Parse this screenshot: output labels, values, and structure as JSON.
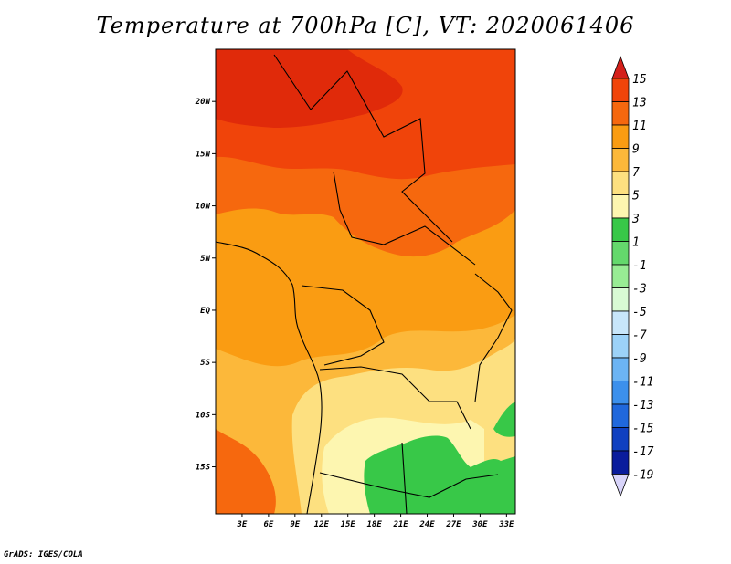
{
  "title": "Temperature at 700hPa [C], VT: 2020061406",
  "credit": "GrADS: IGES/COLA",
  "map": {
    "lat_range": [
      -19.5,
      25
    ],
    "lon_range": [
      0,
      34
    ],
    "lat_ticks": [
      {
        "value": 20,
        "label": "20N"
      },
      {
        "value": 15,
        "label": "15N"
      },
      {
        "value": 10,
        "label": "10N"
      },
      {
        "value": 5,
        "label": "5N"
      },
      {
        "value": 0,
        "label": "EQ"
      },
      {
        "value": -5,
        "label": "5S"
      },
      {
        "value": -10,
        "label": "10S"
      },
      {
        "value": -15,
        "label": "15S"
      }
    ],
    "lon_ticks": [
      {
        "value": 3,
        "label": "3E"
      },
      {
        "value": 6,
        "label": "6E"
      },
      {
        "value": 9,
        "label": "9E"
      },
      {
        "value": 12,
        "label": "12E"
      },
      {
        "value": 15,
        "label": "15E"
      },
      {
        "value": 18,
        "label": "18E"
      },
      {
        "value": 21,
        "label": "21E"
      },
      {
        "value": 24,
        "label": "24E"
      },
      {
        "value": 27,
        "label": "27E"
      },
      {
        "value": 30,
        "label": "30E"
      },
      {
        "value": 33,
        "label": "33E"
      }
    ]
  },
  "colorbar": {
    "levels": [
      "15",
      "13",
      "11",
      "9",
      "7",
      "5",
      "3",
      "1",
      "-1",
      "-3",
      "-5",
      "-7",
      "-9",
      "-11",
      "-13",
      "-15",
      "-17",
      "-19"
    ],
    "colors": [
      "#e02a0a",
      "#f0440a",
      "#f6680e",
      "#fa9c12",
      "#fcb83a",
      "#fde080",
      "#fdf6b0",
      "#38c848",
      "#64d86c",
      "#98ec94",
      "#d8fad4",
      "#c8e6fa",
      "#9cd2f8",
      "#6cb4f4",
      "#3c90ec",
      "#2068dc",
      "#1040c0",
      "#0a1c9c",
      "#060c70"
    ],
    "top_arrow_color": "#d4201a",
    "bottom_arrow_color": "#d8d4fa"
  }
}
